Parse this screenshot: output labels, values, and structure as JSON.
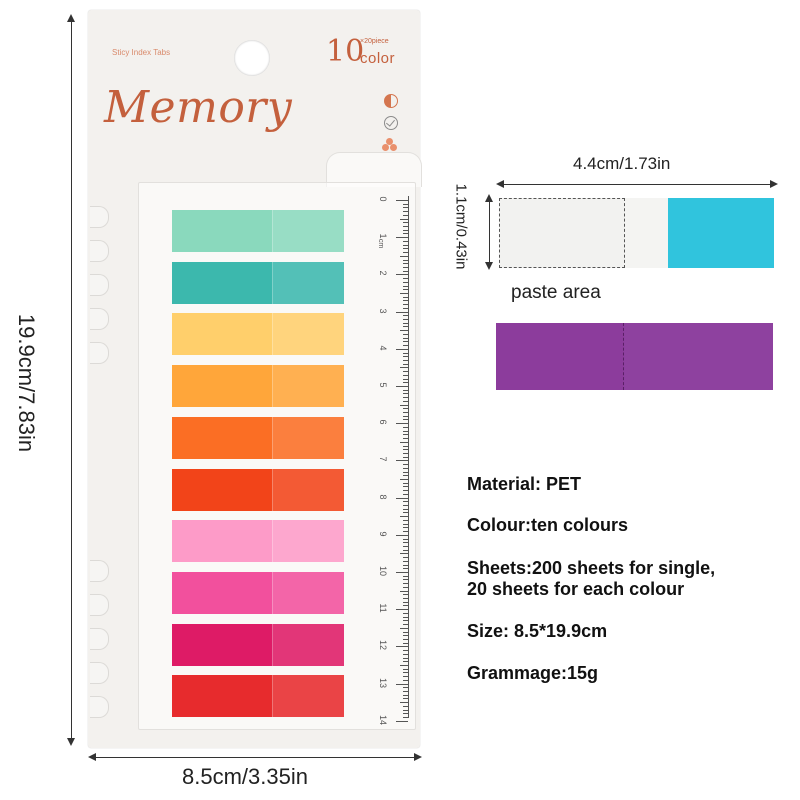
{
  "card": {
    "subtitle": "Sticy Index Tabs",
    "count": "10",
    "pieces": "×20piece",
    "color_word": "color",
    "brand": "Memory",
    "icons": [
      "pie-icon",
      "check-icon",
      "flower-icon"
    ]
  },
  "ruler": {
    "unit": "cm",
    "numbers": [
      "0",
      "1",
      "2",
      "3",
      "4",
      "5",
      "6",
      "7",
      "8",
      "9",
      "10",
      "11",
      "12",
      "13",
      "14"
    ]
  },
  "tab_colors": [
    "#8ad9bd",
    "#3cb8ad",
    "#ffcf6b",
    "#ffa63a",
    "#fb6e24",
    "#f24419",
    "#fd9bc8",
    "#f2509d",
    "#de1b66",
    "#e72b2d"
  ],
  "dimensions": {
    "height": "19.9cm/7.83in",
    "width": "8.5cm/3.35in",
    "tab_length": "4.4cm/1.73in",
    "tab_height": "1.1cm/0.43in"
  },
  "detail": {
    "paste_area": "paste area",
    "cyan": "#30c4dd",
    "purple": "#8c3c9c"
  },
  "specs": {
    "material": "Material: PET",
    "colour": "Colour:ten colours",
    "sheets_line1": "Sheets:200 sheets for single,",
    "sheets_line2": "20 sheets for each colour",
    "size": "Size: 8.5*19.9cm",
    "grammage": "Grammage:15g"
  }
}
